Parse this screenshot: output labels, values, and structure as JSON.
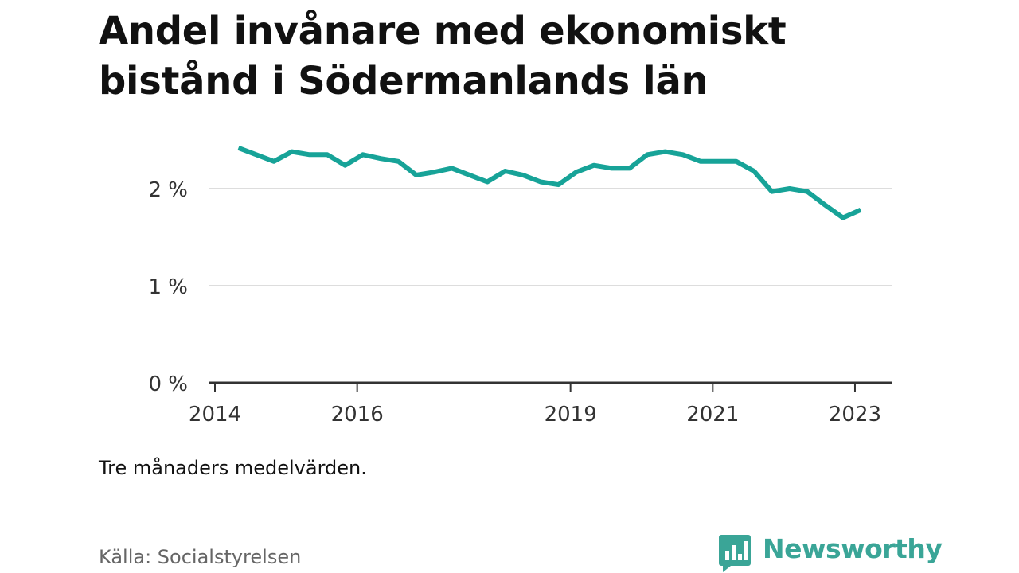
{
  "title": "Andel invånare med ekonomiskt bistånd i Södermanlands län",
  "note": "Tre månaders medelvärden.",
  "source": "Källa: Socialstyrelsen",
  "brand": {
    "name": "Newsworthy",
    "icon": "bar-chart-speech-bubble-icon",
    "color": "#3aa597"
  },
  "colors": {
    "line": "#17a398",
    "grid": "#dddddd",
    "axis": "#333333"
  },
  "chart_data": {
    "type": "line",
    "title": "Andel invånare med ekonomiskt bistånd i Södermanlands län",
    "xlabel": "",
    "ylabel": "",
    "unit": "%",
    "ylim": [
      0,
      2.5
    ],
    "xlim": [
      2014.0,
      2023.5
    ],
    "grid": true,
    "legend": "none",
    "yticks": [
      {
        "value": 0,
        "label": "0 %"
      },
      {
        "value": 1,
        "label": "1 %"
      },
      {
        "value": 2,
        "label": "2 %"
      }
    ],
    "xticks": [
      {
        "value": 2014,
        "label": "2014"
      },
      {
        "value": 2016,
        "label": "2016"
      },
      {
        "value": 2019,
        "label": "2019"
      },
      {
        "value": 2021,
        "label": "2021"
      },
      {
        "value": 2023,
        "label": "2023"
      }
    ],
    "series": [
      {
        "x": [
          2014.33,
          2014.58,
          2014.83,
          2015.08,
          2015.33,
          2015.58,
          2015.83,
          2016.08,
          2016.33,
          2016.58,
          2016.83,
          2017.08,
          2017.33,
          2017.58,
          2017.83,
          2018.08,
          2018.33,
          2018.58,
          2018.83,
          2019.08,
          2019.33,
          2019.58,
          2019.83,
          2020.08,
          2020.33,
          2020.58,
          2020.83,
          2021.08,
          2021.33,
          2021.58,
          2021.83,
          2022.08,
          2022.33,
          2022.58,
          2022.83,
          2023.08
        ],
        "values": [
          2.42,
          2.35,
          2.28,
          2.38,
          2.35,
          2.35,
          2.24,
          2.35,
          2.31,
          2.28,
          2.14,
          2.17,
          2.21,
          2.14,
          2.07,
          2.18,
          2.14,
          2.07,
          2.04,
          2.17,
          2.24,
          2.21,
          2.21,
          2.35,
          2.38,
          2.35,
          2.28,
          2.28,
          2.28,
          2.18,
          1.97,
          2.0,
          1.97,
          1.83,
          1.7,
          1.78
        ]
      }
    ]
  }
}
